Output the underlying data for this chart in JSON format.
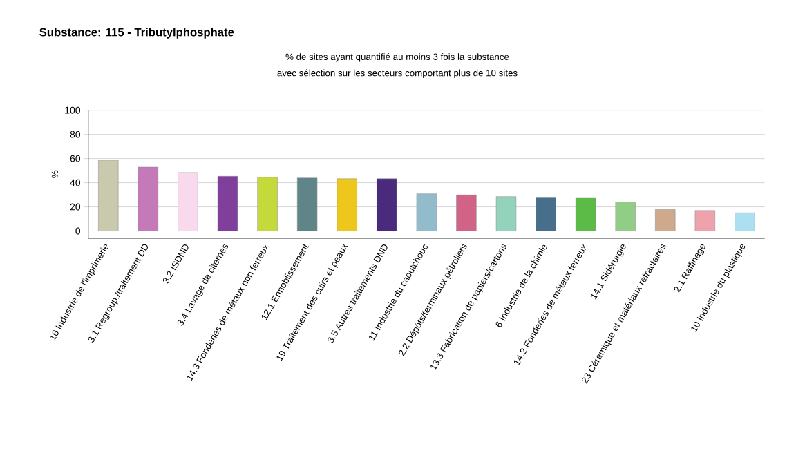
{
  "chart_data": {
    "type": "bar",
    "title": "Substance: 115 - Tributylphosphate",
    "subtitle": "% de sites ayant quantifié au moins 3 fois la substance\navec sélection sur les secteurs comportant plus de 10 sites",
    "ylabel": "%",
    "categories": [
      "16 Industrie de l'imprimerie",
      "3.1 Regroup./traitement DD",
      "3.2 ISDND",
      "3.4 Lavage de citernes",
      "14.3 Fonderies de métaux non ferreux",
      "12.1 Ennoblissement",
      "19 Traitement des cuirs et peaux",
      "3.5 Autres traitements DND",
      "11 Industrie du caoutchouc",
      "2.2 Dépôts/terminaux pétroliers",
      "13.3 Fabrication de papiers/cartons",
      "6 Industrie de la chimie",
      "14.2 Fonderies de métaux ferreux",
      "14.1 Sidérurgie",
      "23 Céramique et matériaux réfractaires",
      "2.1 Raffinage",
      "10 Industrie du plastique"
    ],
    "values": [
      58.7,
      52.9,
      48.4,
      45.3,
      44.5,
      43.9,
      43.3,
      43.3,
      30.8,
      29.9,
      28.5,
      28.1,
      27.7,
      24.0,
      17.8,
      17.0,
      15.0
    ],
    "colors": [
      "#c9c9ae",
      "#c57ab8",
      "#f9d9ec",
      "#7f3f9b",
      "#c4da3a",
      "#5f8589",
      "#eec71d",
      "#4a2a7d",
      "#92bccb",
      "#d06386",
      "#93d3bc",
      "#476f8c",
      "#5cbb47",
      "#92cd87",
      "#cea98b",
      "#eea2ac",
      "#ace0f1"
    ],
    "ylim": [
      -6,
      100
    ],
    "yticks": [
      0,
      20,
      40,
      60,
      80,
      100
    ],
    "grid": "y"
  }
}
